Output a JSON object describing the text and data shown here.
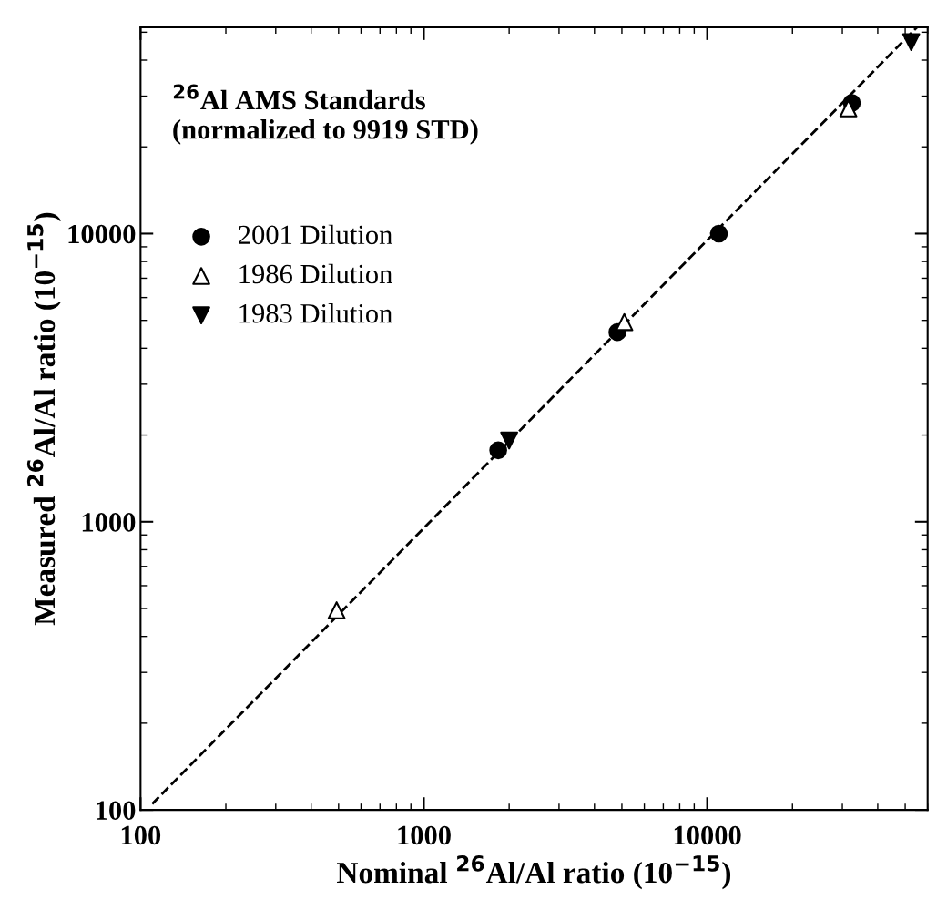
{
  "chart_data": {
    "type": "scatter",
    "xlabel": "Nominal $^{26}$Al/Al ratio (10$^{−15}$)",
    "ylabel": "Measured $^{26}$Al/Al ratio (10$^{−15}$)",
    "annotations": [
      "$^{26}$Al AMS Standards\n(normalized to 9919 STD)"
    ],
    "log": "xy",
    "xlim": [
      100,
      60000
    ],
    "ylim": [
      100,
      52000
    ],
    "xticks": [
      100,
      1000,
      10000
    ],
    "yticks": [
      100,
      1000,
      10000
    ],
    "grid": false,
    "legend": "top left",
    "series": [
      {
        "name": "2001 Dilution",
        "color": "#000000",
        "marker": "circle",
        "x": [
          1830,
          4820,
          11000,
          32400
        ],
        "values": [
          1770,
          4550,
          10000,
          28400
        ]
      },
      {
        "name": "1986 Dilution",
        "color": "#000000",
        "marker": "triangle",
        "x": [
          492,
          5100,
          31500
        ],
        "values": [
          493,
          4930,
          27200
        ]
      },
      {
        "name": "1983 Dilution",
        "color": "#000000",
        "marker": "triangle_down",
        "x": [
          2000,
          52500
        ],
        "values": [
          1915,
          46200
        ]
      },
      {
        "type": "line",
        "color": "#000000",
        "line_style": "dashed",
        "x": [
          110,
          55000
        ],
        "values": [
          105,
          52000
        ]
      }
    ]
  }
}
